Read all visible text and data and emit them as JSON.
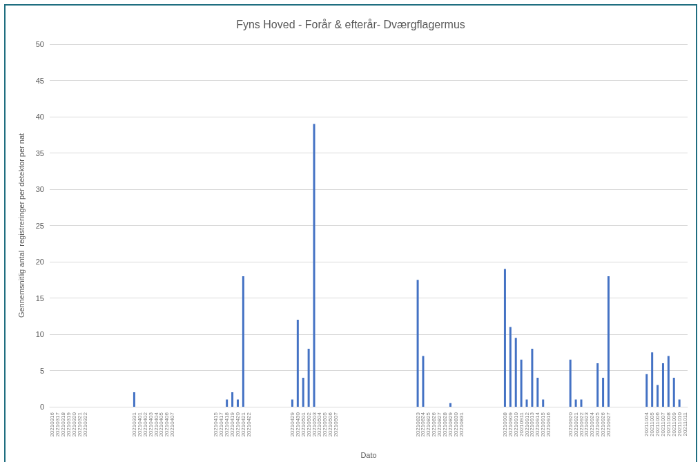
{
  "chart_data": {
    "type": "bar",
    "title": "Fyns Hoved - Forår & efterår- Dværgflagermus",
    "xlabel": "Dato",
    "ylabel": "Gennemsnitlig antal  registreringer per detektor per nat",
    "categories": [
      "20210316",
      "20210317",
      "20210318",
      "20210319",
      "20210320",
      "20210321",
      "20210322",
      null,
      null,
      null,
      null,
      null,
      null,
      null,
      null,
      "20210331",
      "20210401",
      "20210402",
      "20210403",
      "20210404",
      "20210405",
      "20210406",
      "20210407",
      null,
      null,
      null,
      null,
      null,
      null,
      null,
      "20210415",
      "20210417",
      "20210418",
      "20210419",
      "20210420",
      "20210421",
      "20210422",
      null,
      null,
      null,
      null,
      null,
      null,
      null,
      "20210429",
      "20210430",
      "20210501",
      "20210502",
      "20210503",
      "20210504",
      "20210505",
      "20210506",
      "20210507",
      null,
      null,
      null,
      null,
      null,
      null,
      null,
      null,
      null,
      null,
      null,
      null,
      null,
      null,
      "20210823",
      "20210824",
      "20210825",
      "20210826",
      "20210827",
      "20210828",
      "20210829",
      "20210830",
      "20210831",
      null,
      null,
      null,
      null,
      null,
      null,
      null,
      "20210908",
      "20210909",
      "20210910",
      "20210911",
      "20210912",
      "20210913",
      "20210914",
      "20210915",
      "20210916",
      null,
      null,
      null,
      "20210920",
      "20210921",
      "20210922",
      "20210923",
      "20210924",
      "20210925",
      "20210926",
      "20210927",
      null,
      null,
      null,
      null,
      null,
      null,
      "20211004",
      "20211005",
      "20211006",
      "20211007",
      "20211008",
      "20211009",
      "20211010",
      "20211011"
    ],
    "values": [
      0,
      0,
      0,
      0,
      0,
      0,
      0,
      null,
      null,
      null,
      null,
      null,
      null,
      null,
      null,
      2,
      0,
      0,
      0,
      0,
      0,
      0,
      0,
      null,
      null,
      null,
      null,
      null,
      null,
      null,
      0,
      0,
      1,
      2,
      1,
      18,
      0,
      null,
      null,
      null,
      null,
      null,
      null,
      null,
      1,
      12,
      4,
      8,
      39,
      0,
      0,
      0,
      0,
      null,
      null,
      null,
      null,
      null,
      null,
      null,
      null,
      null,
      null,
      null,
      null,
      null,
      null,
      17.5,
      7,
      0,
      0,
      0,
      0,
      0.5,
      0,
      0,
      null,
      null,
      null,
      null,
      null,
      null,
      null,
      19,
      11,
      9.5,
      6.5,
      1,
      8,
      4,
      1,
      0,
      null,
      null,
      null,
      6.5,
      1,
      1,
      0,
      0,
      6,
      4,
      18,
      null,
      null,
      null,
      null,
      null,
      null,
      4.5,
      7.5,
      3,
      6,
      7,
      4,
      1,
      0
    ],
    "color": "#4472c4",
    "ylim": [
      0,
      50
    ],
    "yticks": [
      0,
      5,
      10,
      15,
      20,
      25,
      30,
      35,
      40,
      45,
      50
    ],
    "grid": "y"
  }
}
